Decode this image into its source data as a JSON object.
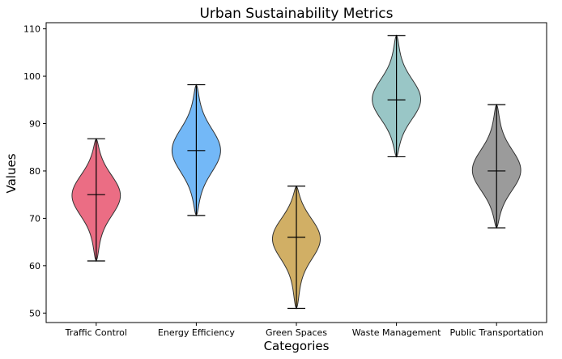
{
  "chart_data": {
    "type": "violin",
    "title": "Urban Sustainability Metrics",
    "xlabel": "Categories",
    "ylabel": "Values",
    "ylim": [
      48,
      111.3
    ],
    "yticks": [
      50,
      60,
      70,
      80,
      90,
      100,
      110
    ],
    "grid": false,
    "categories": [
      "Traffic Control",
      "Energy Efficiency",
      "Green Spaces",
      "Waste Management",
      "Public Transportation"
    ],
    "series": [
      {
        "category": "Traffic Control",
        "min": 61,
        "max": 86.8,
        "median": 75,
        "color": "#e8536f"
      },
      {
        "category": "Energy Efficiency",
        "min": 70.6,
        "max": 98.2,
        "median": 84.3,
        "color": "#5aabf6"
      },
      {
        "category": "Green Spaces",
        "min": 51,
        "max": 76.8,
        "median": 66,
        "color": "#c9a14a"
      },
      {
        "category": "Waste Management",
        "min": 83,
        "max": 108.6,
        "median": 95,
        "color": "#87bcbc"
      },
      {
        "category": "Public Transportation",
        "min": 68,
        "max": 94,
        "median": 80,
        "color": "#8a8a8a"
      }
    ]
  }
}
